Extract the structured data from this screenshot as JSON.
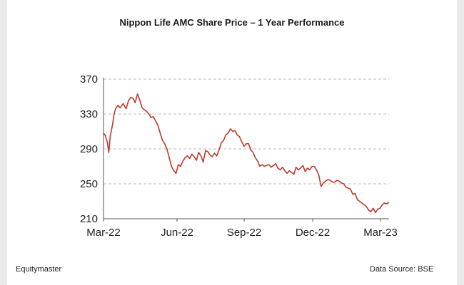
{
  "chart_data": {
    "type": "line",
    "title": "Nippon Life AMC Share Price – 1 Year Performance",
    "xlabel": "",
    "ylabel": "",
    "ylim": [
      210,
      370
    ],
    "yticks": [
      210,
      250,
      290,
      330,
      370
    ],
    "xticks": [
      "Mar-22",
      "Jun-22",
      "Sep-22",
      "Dec-22",
      "Mar-23"
    ],
    "grid": "horizontal-dashed",
    "series": [
      {
        "color": "#c0392b",
        "x": [
          "2022-03-01",
          "2022-03-03",
          "2022-03-06",
          "2022-03-08",
          "2022-03-10",
          "2022-03-13",
          "2022-03-15",
          "2022-03-17",
          "2022-03-20",
          "2022-03-23",
          "2022-03-27",
          "2022-03-31",
          "2022-04-03",
          "2022-04-06",
          "2022-04-09",
          "2022-04-12",
          "2022-04-15",
          "2022-04-18",
          "2022-04-21",
          "2022-04-24",
          "2022-04-27",
          "2022-04-30",
          "2022-05-03",
          "2022-05-06",
          "2022-05-09",
          "2022-05-12",
          "2022-05-15",
          "2022-05-18",
          "2022-05-21",
          "2022-05-24",
          "2022-05-27",
          "2022-05-30",
          "2022-06-02",
          "2022-06-05",
          "2022-06-08",
          "2022-06-11",
          "2022-06-14",
          "2022-06-17",
          "2022-06-20",
          "2022-06-23",
          "2022-06-26",
          "2022-06-29",
          "2022-07-02",
          "2022-07-05",
          "2022-07-08",
          "2022-07-11",
          "2022-07-14",
          "2022-07-17",
          "2022-07-20",
          "2022-07-23",
          "2022-07-26",
          "2022-07-29",
          "2022-08-01",
          "2022-08-04",
          "2022-08-07",
          "2022-08-10",
          "2022-08-13",
          "2022-08-16",
          "2022-08-19",
          "2022-08-22",
          "2022-08-25",
          "2022-08-28",
          "2022-08-31",
          "2022-09-03",
          "2022-09-06",
          "2022-09-09",
          "2022-09-12",
          "2022-09-15",
          "2022-09-18",
          "2022-09-21",
          "2022-09-24",
          "2022-09-27",
          "2022-09-30",
          "2022-10-03",
          "2022-10-06",
          "2022-10-09",
          "2022-10-12",
          "2022-10-15",
          "2022-10-18",
          "2022-10-21",
          "2022-10-24",
          "2022-10-27",
          "2022-10-30",
          "2022-11-02",
          "2022-11-05",
          "2022-11-08",
          "2022-11-11",
          "2022-11-14",
          "2022-11-17",
          "2022-11-20",
          "2022-11-23",
          "2022-11-26",
          "2022-11-29",
          "2022-12-02",
          "2022-12-05",
          "2022-12-08",
          "2022-12-11",
          "2022-12-14",
          "2022-12-17",
          "2022-12-20",
          "2022-12-23",
          "2022-12-26",
          "2022-12-29",
          "2023-01-01",
          "2023-01-04",
          "2023-01-07",
          "2023-01-10",
          "2023-01-13",
          "2023-01-16",
          "2023-01-19",
          "2023-01-22",
          "2023-01-25",
          "2023-01-28",
          "2023-01-31",
          "2023-02-03",
          "2023-02-06",
          "2023-02-09",
          "2023-02-12",
          "2023-02-15",
          "2023-02-18",
          "2023-02-21",
          "2023-02-24",
          "2023-02-27",
          "2023-03-02",
          "2023-03-05",
          "2023-03-08",
          "2023-03-11",
          "2023-03-14"
        ],
        "values": [
          308,
          306,
          298,
          286,
          305,
          318,
          330,
          336,
          340,
          337,
          342,
          336,
          345,
          349,
          348,
          343,
          353,
          346,
          337,
          335,
          333,
          330,
          326,
          327,
          322,
          317,
          308,
          300,
          296,
          290,
          280,
          270,
          265,
          262,
          272,
          270,
          276,
          280,
          282,
          279,
          284,
          281,
          277,
          286,
          282,
          275,
          288,
          287,
          283,
          281,
          285,
          282,
          289,
          297,
          300,
          306,
          308,
          313,
          310,
          311,
          306,
          304,
          298,
          293,
          296,
          296,
          289,
          286,
          280,
          276,
          270,
          272,
          270,
          271,
          272,
          269,
          271,
          273,
          268,
          266,
          269,
          265,
          262,
          265,
          263,
          261,
          269,
          266,
          268,
          271,
          264,
          268,
          266,
          270,
          270,
          266,
          260,
          247,
          251,
          253,
          255,
          254,
          252,
          252,
          254,
          253,
          251,
          250,
          246,
          245,
          244,
          238,
          239,
          232,
          230,
          228,
          226,
          224,
          220,
          218,
          222,
          217,
          221,
          222,
          226,
          228,
          227,
          229
        ]
      }
    ]
  },
  "footer": {
    "left": "Equitymaster",
    "right": "Data Source: BSE"
  }
}
